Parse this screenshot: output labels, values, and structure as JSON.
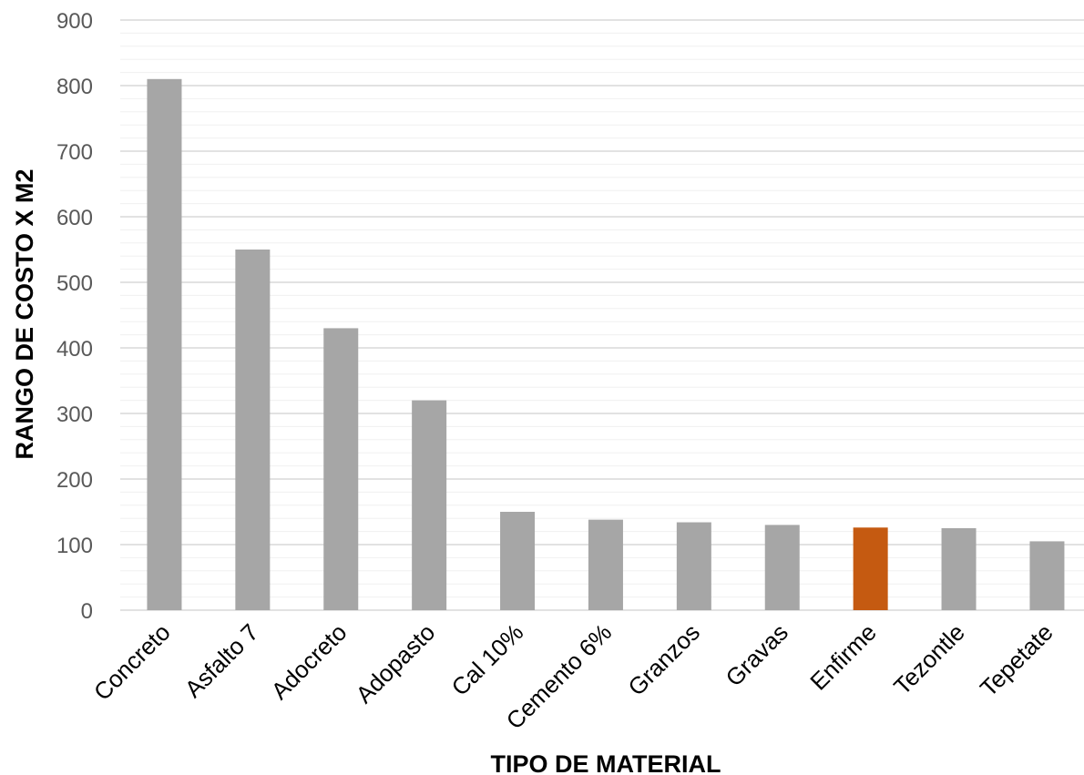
{
  "chart_data": {
    "type": "bar",
    "title": "",
    "xlabel": "TIPO DE MATERIAL",
    "ylabel": "RANGO DE COSTO X M2",
    "categories": [
      "Concreto",
      "Asfalto 7",
      "Adocreto",
      "Adopasto",
      "Cal 10%",
      "Cemento 6%",
      "Granzos",
      "Gravas",
      "Enfirme",
      "Tezontle",
      "Tepetate"
    ],
    "values": [
      810,
      550,
      430,
      320,
      150,
      138,
      134,
      130,
      126,
      125,
      105
    ],
    "ylim": [
      0,
      900
    ],
    "yticks": [
      0,
      100,
      200,
      300,
      400,
      500,
      600,
      700,
      800,
      900
    ],
    "grid": true,
    "minor_grid": true,
    "legend": "none",
    "colors": {
      "default_bar": "#a6a6a6",
      "highlight_bar": "#c55a11",
      "highlight_category": "Enfirme",
      "major_grid": "#d9d9d9",
      "minor_grid": "#f0f0f0"
    }
  }
}
